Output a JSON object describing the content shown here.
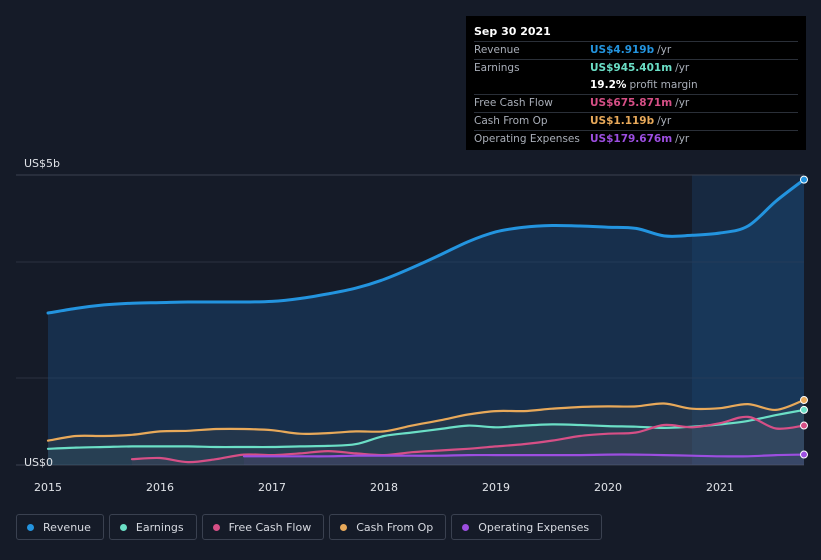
{
  "tooltip": {
    "date": "Sep 30 2021",
    "rows": [
      {
        "label": "Revenue",
        "value": "US$4.919b",
        "unit": "/yr",
        "color": "#2394df"
      },
      {
        "label": "Earnings",
        "value": "US$945.401m",
        "unit": "/yr",
        "color": "#6bdfc6"
      },
      {
        "label": "",
        "value": "19.2%",
        "unit": "profit margin",
        "color": "#ffffff"
      },
      {
        "label": "Free Cash Flow",
        "value": "US$675.871m",
        "unit": "/yr",
        "color": "#d64f86"
      },
      {
        "label": "Cash From Op",
        "value": "US$1.119b",
        "unit": "/yr",
        "color": "#e8a95a"
      },
      {
        "label": "Operating Expenses",
        "value": "US$179.676m",
        "unit": "/yr",
        "color": "#9c4ee0"
      }
    ]
  },
  "legend": [
    {
      "label": "Revenue",
      "color": "#2394df"
    },
    {
      "label": "Earnings",
      "color": "#6bdfc6"
    },
    {
      "label": "Free Cash Flow",
      "color": "#d64f86"
    },
    {
      "label": "Cash From Op",
      "color": "#e8a95a"
    },
    {
      "label": "Operating Expenses",
      "color": "#9c4ee0"
    }
  ],
  "chart_data": {
    "type": "area",
    "y_top_label": "US$5b",
    "y_bottom_label": "US$0",
    "ylim": [
      0,
      5
    ],
    "xlim": [
      2015.0,
      2021.75
    ],
    "x_ticks": [
      {
        "value": 2015,
        "label": "2015"
      },
      {
        "value": 2016,
        "label": "2016"
      },
      {
        "value": 2017,
        "label": "2017"
      },
      {
        "value": 2018,
        "label": "2018"
      },
      {
        "value": 2019,
        "label": "2019"
      },
      {
        "value": 2020,
        "label": "2020"
      },
      {
        "value": 2021,
        "label": "2021"
      }
    ],
    "highlight_start": 2020.75,
    "series": [
      {
        "name": "Revenue",
        "color": "#2394df",
        "fill": true,
        "x": [
          2015.0,
          2015.25,
          2015.5,
          2015.75,
          2016.0,
          2016.25,
          2016.5,
          2016.75,
          2017.0,
          2017.25,
          2017.5,
          2017.75,
          2018.0,
          2018.25,
          2018.5,
          2018.75,
          2019.0,
          2019.25,
          2019.5,
          2019.75,
          2020.0,
          2020.25,
          2020.5,
          2020.75,
          2021.0,
          2021.25,
          2021.5,
          2021.75
        ],
        "y": [
          2.62,
          2.7,
          2.76,
          2.79,
          2.8,
          2.81,
          2.81,
          2.81,
          2.82,
          2.87,
          2.95,
          3.05,
          3.2,
          3.4,
          3.62,
          3.85,
          4.02,
          4.1,
          4.13,
          4.12,
          4.1,
          4.08,
          3.95,
          3.96,
          4.0,
          4.12,
          4.55,
          4.92
        ]
      },
      {
        "name": "Earnings",
        "color": "#6bdfc6",
        "x": [
          2015.0,
          2015.25,
          2015.5,
          2015.75,
          2016.0,
          2016.25,
          2016.5,
          2016.75,
          2017.0,
          2017.25,
          2017.5,
          2017.75,
          2018.0,
          2018.25,
          2018.5,
          2018.75,
          2019.0,
          2019.25,
          2019.5,
          2019.75,
          2020.0,
          2020.25,
          2020.5,
          2020.75,
          2021.0,
          2021.25,
          2021.5,
          2021.75
        ],
        "y": [
          0.28,
          0.3,
          0.31,
          0.32,
          0.32,
          0.32,
          0.31,
          0.31,
          0.31,
          0.32,
          0.33,
          0.36,
          0.5,
          0.56,
          0.62,
          0.68,
          0.65,
          0.68,
          0.7,
          0.69,
          0.67,
          0.66,
          0.64,
          0.66,
          0.7,
          0.76,
          0.86,
          0.95
        ]
      },
      {
        "name": "Free Cash Flow",
        "color": "#d64f86",
        "x": [
          2015.75,
          2016.0,
          2016.25,
          2016.5,
          2016.75,
          2017.0,
          2017.25,
          2017.5,
          2017.75,
          2018.0,
          2018.25,
          2018.5,
          2018.75,
          2019.0,
          2019.25,
          2019.5,
          2019.75,
          2020.0,
          2020.25,
          2020.5,
          2020.75,
          2021.0,
          2021.25,
          2021.5,
          2021.75
        ],
        "y": [
          0.1,
          0.12,
          0.05,
          0.1,
          0.18,
          0.17,
          0.2,
          0.24,
          0.2,
          0.17,
          0.22,
          0.25,
          0.28,
          0.32,
          0.36,
          0.42,
          0.5,
          0.54,
          0.56,
          0.69,
          0.65,
          0.72,
          0.83,
          0.63,
          0.68
        ]
      },
      {
        "name": "Cash From Op",
        "color": "#e8a95a",
        "x": [
          2015.0,
          2015.25,
          2015.5,
          2015.75,
          2016.0,
          2016.25,
          2016.5,
          2016.75,
          2017.0,
          2017.25,
          2017.5,
          2017.75,
          2018.0,
          2018.25,
          2018.5,
          2018.75,
          2019.0,
          2019.25,
          2019.5,
          2019.75,
          2020.0,
          2020.25,
          2020.5,
          2020.75,
          2021.0,
          2021.25,
          2021.5,
          2021.75
        ],
        "y": [
          0.42,
          0.5,
          0.5,
          0.52,
          0.58,
          0.59,
          0.62,
          0.62,
          0.6,
          0.54,
          0.55,
          0.58,
          0.58,
          0.68,
          0.77,
          0.87,
          0.93,
          0.93,
          0.97,
          1.0,
          1.01,
          1.01,
          1.06,
          0.97,
          0.98,
          1.05,
          0.95,
          1.12
        ]
      },
      {
        "name": "Operating Expenses",
        "color": "#9c4ee0",
        "x": [
          2016.75,
          2017.0,
          2017.25,
          2017.5,
          2017.75,
          2018.0,
          2018.25,
          2018.5,
          2018.75,
          2019.0,
          2019.25,
          2019.5,
          2019.75,
          2020.0,
          2020.25,
          2020.5,
          2020.75,
          2021.0,
          2021.25,
          2021.5,
          2021.75
        ],
        "y": [
          0.15,
          0.15,
          0.15,
          0.15,
          0.16,
          0.16,
          0.16,
          0.16,
          0.17,
          0.17,
          0.17,
          0.17,
          0.17,
          0.18,
          0.18,
          0.17,
          0.16,
          0.15,
          0.15,
          0.17,
          0.18
        ]
      }
    ]
  }
}
